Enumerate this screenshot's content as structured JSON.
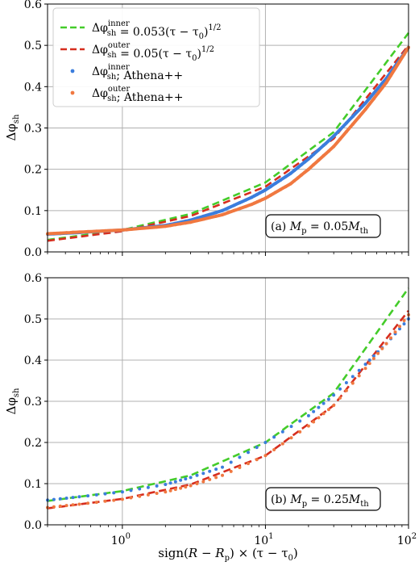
{
  "chart_data": [
    {
      "type": "line",
      "panel_label": "(a) M_p = 0.05M_th",
      "panel_label_parts": {
        "prefix": "(a) ",
        "var": "M",
        "var_sub": "p",
        "eq": " = 0.05",
        "var2": "M",
        "var2_sub": "th"
      },
      "ylabel": "Δφ_sh",
      "x_scale": "log",
      "xlim": [
        0.3,
        100
      ],
      "ylim": [
        0.0,
        0.6
      ],
      "x_ticks": [
        {
          "value": 1,
          "base": "10",
          "exp": "0"
        },
        {
          "value": 10,
          "base": "10",
          "exp": "1"
        },
        {
          "value": 100,
          "base": "10",
          "exp": "2"
        }
      ],
      "y_ticks": [
        "0.0",
        "0.1",
        "0.2",
        "0.3",
        "0.4",
        "0.5",
        "0.6"
      ],
      "grid": true,
      "legend_position": "top-left",
      "series": [
        {
          "name": "Δφ_sh^inner = 0.053(τ − τ0)^1/2",
          "style": "dashed",
          "color": "#44cc2a",
          "coef": 0.053,
          "x": [
            0.3,
            1,
            3,
            10,
            30,
            100
          ],
          "y": [
            0.029,
            0.053,
            0.092,
            0.168,
            0.29,
            0.53
          ]
        },
        {
          "name": "Δφ_sh^outer = 0.05(τ − τ0)^1/2",
          "style": "dashed",
          "color": "#d62d1e",
          "coef": 0.05,
          "x": [
            0.3,
            1,
            3,
            10,
            30,
            100
          ],
          "y": [
            0.027,
            0.05,
            0.087,
            0.158,
            0.274,
            0.5
          ]
        },
        {
          "name": "Δφ_sh^inner; Athena++",
          "style": "dots",
          "color": "#3b7ddd",
          "x": [
            0.3,
            0.5,
            1,
            2,
            3,
            5,
            8,
            10,
            15,
            20,
            30,
            50,
            70,
            100
          ],
          "y": [
            0.043,
            0.047,
            0.053,
            0.064,
            0.077,
            0.1,
            0.132,
            0.15,
            0.19,
            0.225,
            0.28,
            0.36,
            0.42,
            0.495
          ]
        },
        {
          "name": "Δφ_sh^outer; Athena++",
          "style": "dots",
          "color": "#f07840",
          "x": [
            0.3,
            0.5,
            1,
            2,
            3,
            5,
            8,
            10,
            15,
            20,
            30,
            50,
            70,
            100
          ],
          "y": [
            0.044,
            0.048,
            0.053,
            0.062,
            0.072,
            0.09,
            0.115,
            0.13,
            0.165,
            0.2,
            0.255,
            0.345,
            0.41,
            0.495
          ]
        },
        {
          "name": "",
          "style": "solid",
          "color": "#3b7ddd",
          "x": [
            0.3,
            0.5,
            1,
            2,
            3,
            5,
            8,
            10,
            15,
            20,
            30,
            50,
            70,
            100
          ],
          "y": [
            0.043,
            0.047,
            0.053,
            0.064,
            0.077,
            0.1,
            0.132,
            0.15,
            0.19,
            0.225,
            0.28,
            0.36,
            0.42,
            0.495
          ]
        },
        {
          "name": "",
          "style": "solid",
          "color": "#f07840",
          "x": [
            0.3,
            0.5,
            1,
            2,
            3,
            5,
            8,
            10,
            15,
            20,
            30,
            50,
            70,
            100
          ],
          "y": [
            0.044,
            0.048,
            0.053,
            0.062,
            0.072,
            0.09,
            0.115,
            0.13,
            0.165,
            0.2,
            0.255,
            0.345,
            0.41,
            0.495
          ]
        }
      ],
      "legend": [
        {
          "kind": "dash",
          "color": "#44cc2a",
          "parts": {
            "lhs": "Δφ",
            "sup": "inner",
            "sub": "sh",
            "rhs": " = 0.053(τ − τ",
            "rhs_sub": "0",
            "rhs_end": ")",
            "rhs_sup": "1/2"
          }
        },
        {
          "kind": "dash",
          "color": "#d62d1e",
          "parts": {
            "lhs": "Δφ",
            "sup": "outer",
            "sub": "sh",
            "rhs": " = 0.05(τ − τ",
            "rhs_sub": "0",
            "rhs_end": ")",
            "rhs_sup": "1/2"
          }
        },
        {
          "kind": "dot",
          "color": "#3b7ddd",
          "parts": {
            "lhs": "Δφ",
            "sup": "inner",
            "sub": "sh",
            "rhs": "; Athena++",
            "rhs_sub": "",
            "rhs_end": "",
            "rhs_sup": ""
          }
        },
        {
          "kind": "dot",
          "color": "#f07840",
          "parts": {
            "lhs": "Δφ",
            "sup": "outer",
            "sub": "sh",
            "rhs": "; Athena++",
            "rhs_sub": "",
            "rhs_end": "",
            "rhs_sup": ""
          }
        }
      ]
    },
    {
      "type": "line",
      "panel_label": "(b) M_p = 0.25M_th",
      "panel_label_parts": {
        "prefix": "(b) ",
        "var": "M",
        "var_sub": "p",
        "eq": " = 0.25",
        "var2": "M",
        "var2_sub": "th"
      },
      "ylabel": "Δφ_sh",
      "xlabel": "sign(R − R_p) × (τ − τ0)",
      "x_scale": "log",
      "xlim": [
        0.3,
        100
      ],
      "ylim": [
        0.0,
        0.6
      ],
      "x_ticks": [
        {
          "value": 1,
          "base": "10",
          "exp": "0"
        },
        {
          "value": 10,
          "base": "10",
          "exp": "1"
        },
        {
          "value": 100,
          "base": "10",
          "exp": "2"
        }
      ],
      "y_ticks": [
        "0.0",
        "0.1",
        "0.2",
        "0.3",
        "0.4",
        "0.5",
        "0.6"
      ],
      "grid": true,
      "series": [
        {
          "name": "",
          "style": "dashed",
          "color": "#44cc2a",
          "x": [
            0.3,
            1,
            3,
            10,
            30,
            100
          ],
          "y": [
            0.058,
            0.082,
            0.12,
            0.2,
            0.32,
            0.575
          ]
        },
        {
          "name": "",
          "style": "dashed",
          "color": "#d62d1e",
          "x": [
            0.3,
            1,
            3,
            10,
            30,
            100
          ],
          "y": [
            0.04,
            0.063,
            0.098,
            0.168,
            0.29,
            0.52
          ]
        },
        {
          "name": "",
          "style": "dots",
          "color": "#3b7ddd",
          "x": [
            0.3,
            0.5,
            1,
            2,
            3,
            5,
            10,
            20,
            30,
            50,
            70,
            100
          ],
          "y": [
            0.06,
            0.068,
            0.08,
            0.098,
            0.115,
            0.14,
            0.2,
            0.265,
            0.315,
            0.39,
            0.44,
            0.5
          ]
        },
        {
          "name": "",
          "style": "dots",
          "color": "#f07840",
          "x": [
            0.3,
            0.5,
            1,
            2,
            3,
            5,
            10,
            20,
            30,
            50,
            70,
            100
          ],
          "y": [
            0.042,
            0.05,
            0.062,
            0.08,
            0.095,
            0.12,
            0.168,
            0.24,
            0.29,
            0.38,
            0.44,
            0.51
          ]
        }
      ]
    }
  ],
  "xlabel_parts": {
    "pre": "sign(",
    "R": "R",
    "minus": " − ",
    "Rp": "R",
    "Rp_sub": "p",
    "mid": ") × (τ − τ",
    "tau_sub": "0",
    "post": ")"
  },
  "ylabel_parts": {
    "main": "Δφ",
    "sub": "sh"
  }
}
